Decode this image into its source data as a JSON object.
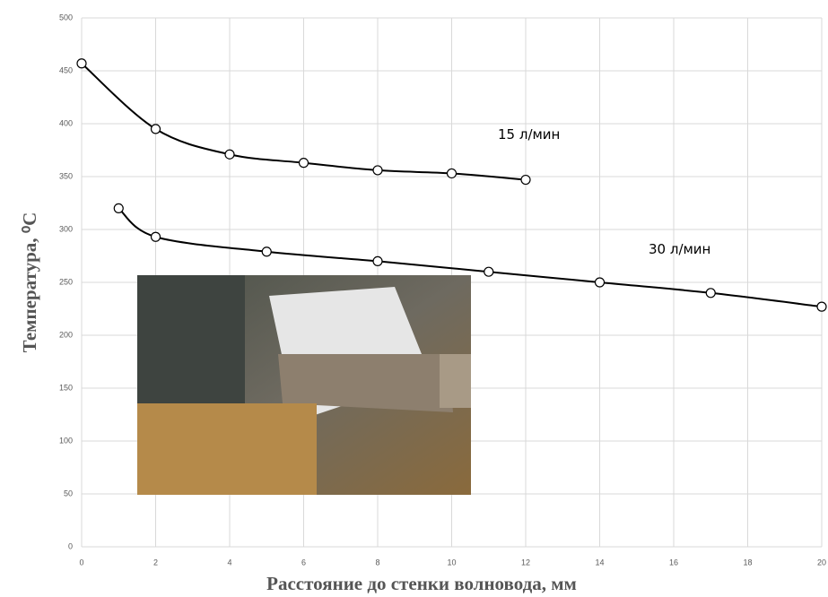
{
  "chart_data": {
    "type": "line",
    "x_label": "Расстояние до стенки волновода, мм",
    "y_label": "Температура, ⁰C",
    "series": [
      {
        "name": "15 л/мин",
        "color": "#000000",
        "x": [
          0,
          2,
          4,
          6,
          8,
          10,
          12
        ],
        "values": [
          457,
          395,
          371,
          363,
          356,
          353,
          347
        ]
      },
      {
        "name": "30 л/мин",
        "color": "#000000",
        "x": [
          1,
          2,
          5,
          8,
          11,
          14,
          17,
          20
        ],
        "values": [
          320,
          293,
          279,
          270,
          260,
          250,
          240,
          227
        ]
      }
    ],
    "xlim": [
      0,
      20
    ],
    "xticks": [
      0,
      2,
      4,
      6,
      8,
      10,
      12,
      14,
      16,
      18,
      20
    ],
    "ylim": [
      0,
      500
    ],
    "yticks": [
      0,
      50,
      100,
      150,
      200,
      250,
      300,
      350,
      400,
      450,
      500
    ],
    "grid": true
  }
}
